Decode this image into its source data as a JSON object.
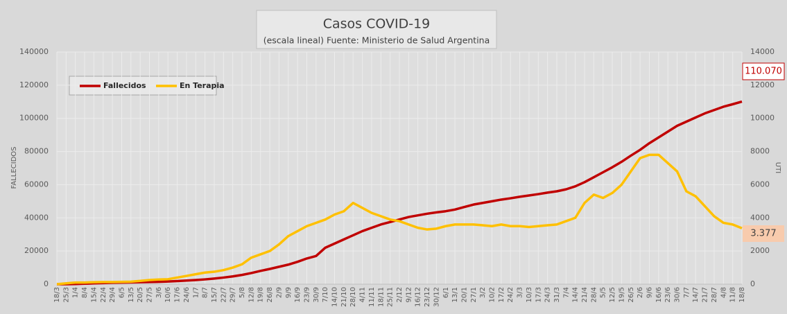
{
  "chart_data": {
    "type": "line",
    "title": "Casos COVID-19",
    "subtitle": "(escala lineal) Fuente: Ministerio de Salud Argentina",
    "y_label": "FALLECIDOS",
    "y2_label": "UTI",
    "categories": [
      "18/3",
      "25/3",
      "1/4",
      "8/4",
      "15/4",
      "22/4",
      "29/4",
      "6/5",
      "13/5",
      "20/5",
      "27/5",
      "3/6",
      "10/6",
      "17/6",
      "24/6",
      "1/7",
      "8/7",
      "15/7",
      "22/7",
      "29/7",
      "5/8",
      "12/8",
      "19/8",
      "26/8",
      "2/9",
      "9/9",
      "16/9",
      "23/9",
      "30/9",
      "7/10",
      "14/10",
      "21/10",
      "28/10",
      "4/11",
      "11/11",
      "18/11",
      "25/11",
      "2/12",
      "9/12",
      "16/12",
      "23/12",
      "30/12",
      "6/1",
      "13/1",
      "20/1",
      "27/1",
      "3/2",
      "10/2",
      "17/2",
      "24/2",
      "3/3",
      "10/3",
      "17/3",
      "24/3",
      "31/3",
      "7/4",
      "14/4",
      "21/4",
      "28/4",
      "5/5",
      "12/5",
      "19/5",
      "26/5",
      "2/6",
      "9/6",
      "16/6",
      "23/6",
      "30/6",
      "7/7",
      "14/7",
      "21/7",
      "28/7",
      "4/8",
      "11/8",
      "18/8"
    ],
    "series": [
      {
        "name": "Fallecidos",
        "color": "#c00000",
        "axis": "y",
        "values": [
          0,
          0,
          100,
          300,
          500,
          700,
          900,
          1000,
          1100,
          1200,
          1300,
          1400,
          1600,
          1900,
          2200,
          2500,
          2900,
          3400,
          4000,
          4700,
          5600,
          6700,
          8000,
          9200,
          10500,
          11800,
          13500,
          15500,
          17000,
          22000,
          24500,
          27000,
          29500,
          32000,
          34000,
          36000,
          37500,
          39000,
          40500,
          41500,
          42500,
          43300,
          44000,
          45000,
          46500,
          48000,
          49000,
          50000,
          51000,
          51800,
          52700,
          53500,
          54300,
          55200,
          56000,
          57200,
          59000,
          61500,
          64500,
          67500,
          70500,
          73800,
          77500,
          81000,
          85000,
          88500,
          92000,
          95500,
          98000,
          100500,
          103000,
          105000,
          107000,
          108500,
          110070
        ],
        "value_labels": [
          null,
          null,
          null,
          null,
          null,
          null,
          null,
          null,
          null,
          null,
          null,
          null,
          null,
          null,
          null,
          null,
          null,
          null,
          null,
          null,
          null,
          null,
          null,
          null,
          null,
          null,
          null,
          null,
          null,
          null,
          null,
          null,
          null,
          null,
          null,
          null,
          null,
          null,
          null,
          null,
          null,
          null,
          null,
          null,
          null,
          null,
          null,
          null,
          null,
          null,
          null,
          null,
          null,
          null,
          null,
          null,
          null,
          null,
          null,
          null,
          null,
          null,
          null,
          null,
          null,
          null,
          null,
          null,
          null,
          null,
          null,
          null,
          null,
          null,
          "110.070"
        ]
      },
      {
        "name": "En Terapia",
        "color": "#ffc000",
        "axis": "y2",
        "values": [
          0,
          50,
          100,
          100,
          120,
          130,
          130,
          140,
          150,
          200,
          250,
          280,
          300,
          400,
          500,
          600,
          700,
          750,
          850,
          1000,
          1200,
          1600,
          1800,
          2000,
          2400,
          2900,
          3200,
          3500,
          3700,
          3900,
          4200,
          4400,
          4900,
          4600,
          4300,
          4100,
          3900,
          3800,
          3600,
          3400,
          3300,
          3350,
          3500,
          3600,
          3600,
          3600,
          3550,
          3500,
          3600,
          3500,
          3500,
          3450,
          3500,
          3550,
          3600,
          3800,
          4000,
          4900,
          5400,
          5200,
          5500,
          6000,
          6800,
          7600,
          7800,
          7800,
          7300,
          6800,
          5600,
          5300,
          4700,
          4100,
          3700,
          3600,
          3377
        ],
        "value_labels": [
          null,
          null,
          null,
          null,
          null,
          null,
          null,
          null,
          null,
          null,
          null,
          null,
          null,
          null,
          null,
          null,
          null,
          null,
          null,
          null,
          null,
          null,
          null,
          null,
          null,
          null,
          null,
          null,
          null,
          null,
          null,
          null,
          null,
          null,
          null,
          null,
          null,
          null,
          null,
          null,
          null,
          null,
          null,
          null,
          null,
          null,
          null,
          null,
          null,
          null,
          null,
          null,
          null,
          null,
          null,
          null,
          null,
          null,
          null,
          null,
          null,
          null,
          null,
          null,
          null,
          null,
          null,
          null,
          null,
          null,
          null,
          null,
          null,
          null,
          "3.377"
        ]
      }
    ],
    "ylim": [
      0,
      140000
    ],
    "yticks": [
      0,
      20000,
      40000,
      60000,
      80000,
      100000,
      120000,
      140000
    ],
    "y2lim": [
      0,
      14000
    ],
    "y2ticks": [
      0,
      2000,
      4000,
      6000,
      8000,
      10000,
      12000,
      14000
    ],
    "grid": true,
    "legend": "top-left"
  }
}
